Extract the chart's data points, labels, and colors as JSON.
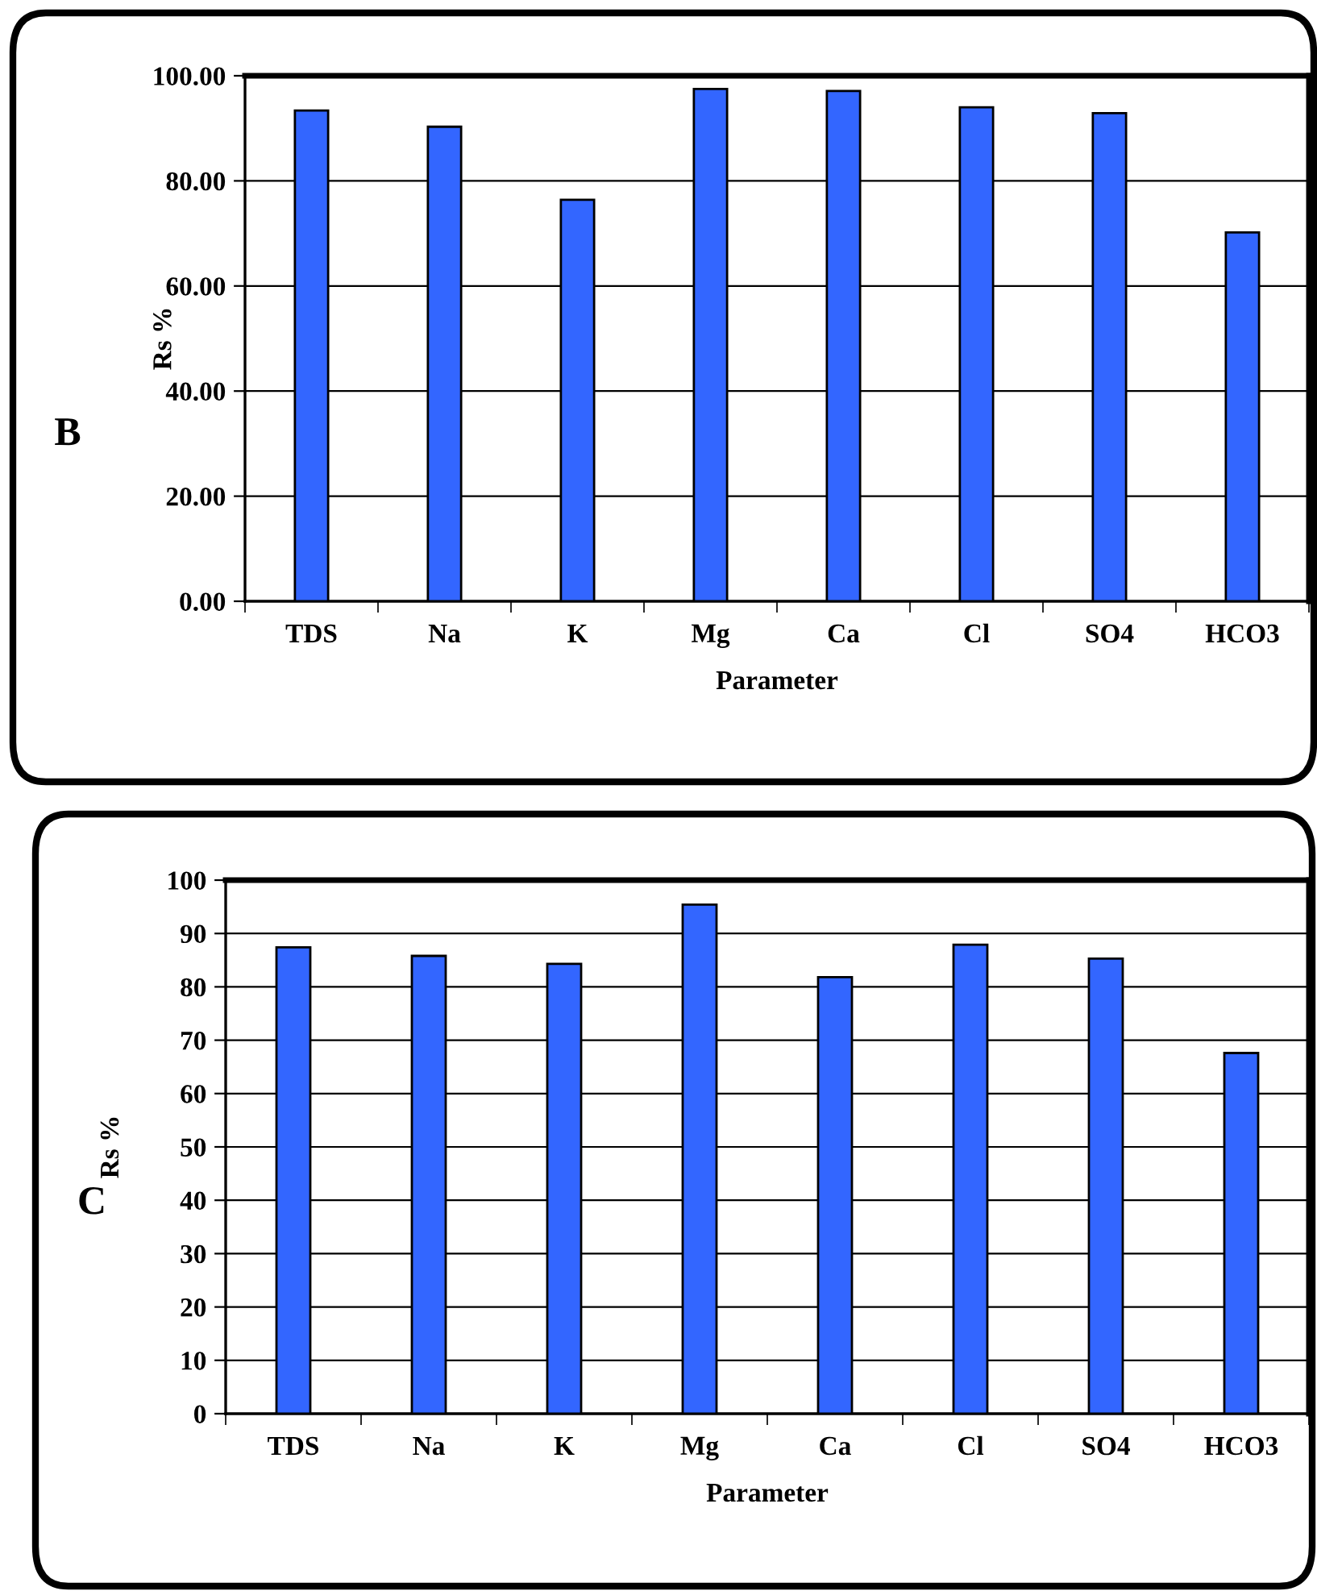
{
  "chart_data": [
    {
      "type": "bar",
      "ylabel": "Rs %",
      "xlabel": "Parameter",
      "annotations": [
        "B"
      ],
      "categories": [
        "TDS",
        "Na",
        "K",
        "Mg",
        "Ca",
        "Cl",
        "SO4",
        "HCO3"
      ],
      "values": [
        93.4,
        90.3,
        76.4,
        97.5,
        97.1,
        94.0,
        92.9,
        70.2
      ],
      "color": "#3366ff",
      "ylim": [
        0,
        100
      ],
      "yticks": [
        {
          "value": 0,
          "label": "0.00"
        },
        {
          "value": 20,
          "label": "20.00"
        },
        {
          "value": 40,
          "label": "40.00"
        },
        {
          "value": 60,
          "label": "60.00"
        },
        {
          "value": 80,
          "label": "80.00"
        },
        {
          "value": 100,
          "label": "100.00"
        }
      ],
      "grid": "y"
    },
    {
      "type": "bar",
      "ylabel": "Rs %",
      "xlabel": "Parameter",
      "annotations": [
        "C"
      ],
      "categories": [
        "TDS",
        "Na",
        "K",
        "Mg",
        "Ca",
        "Cl",
        "SO4",
        "HCO3"
      ],
      "values": [
        87.4,
        85.8,
        84.3,
        95.4,
        81.8,
        87.9,
        85.3,
        67.6
      ],
      "color": "#3366ff",
      "ylim": [
        0,
        100
      ],
      "yticks": [
        0,
        10,
        20,
        30,
        40,
        50,
        60,
        70,
        80,
        90,
        100
      ],
      "grid": "y"
    }
  ]
}
